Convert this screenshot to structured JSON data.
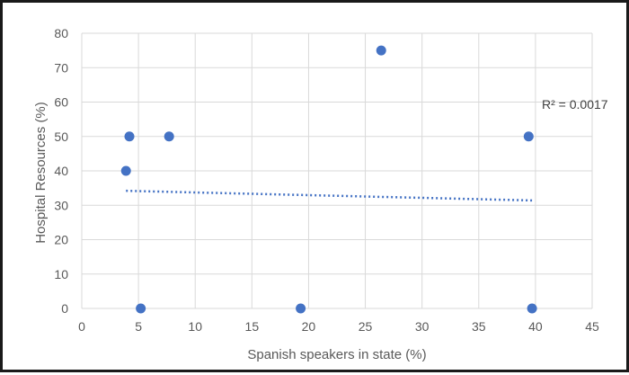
{
  "chart_data": {
    "type": "scatter",
    "title": "",
    "xlabel": "Spanish speakers in state (%)",
    "ylabel": "Hospital Resources (%)",
    "xlim": [
      0,
      45
    ],
    "ylim": [
      0,
      80
    ],
    "x_ticks": [
      0,
      5,
      10,
      15,
      20,
      25,
      30,
      35,
      40,
      45
    ],
    "y_ticks": [
      0,
      10,
      20,
      30,
      40,
      50,
      60,
      70,
      80
    ],
    "grid": true,
    "legend": "none",
    "marker_color": "#4472C4",
    "trendline_color": "#4472C4",
    "points": [
      {
        "x": 3.9,
        "y": 40
      },
      {
        "x": 4.2,
        "y": 50
      },
      {
        "x": 5.2,
        "y": 0
      },
      {
        "x": 7.7,
        "y": 50
      },
      {
        "x": 19.3,
        "y": 0
      },
      {
        "x": 26.4,
        "y": 75
      },
      {
        "x": 39.4,
        "y": 50
      },
      {
        "x": 39.7,
        "y": 0
      }
    ],
    "trendline": {
      "type": "linear",
      "x_start": 3.9,
      "y_start": 34.2,
      "x_end": 39.7,
      "y_end": 31.4,
      "label": "R² = 0.0017"
    }
  }
}
